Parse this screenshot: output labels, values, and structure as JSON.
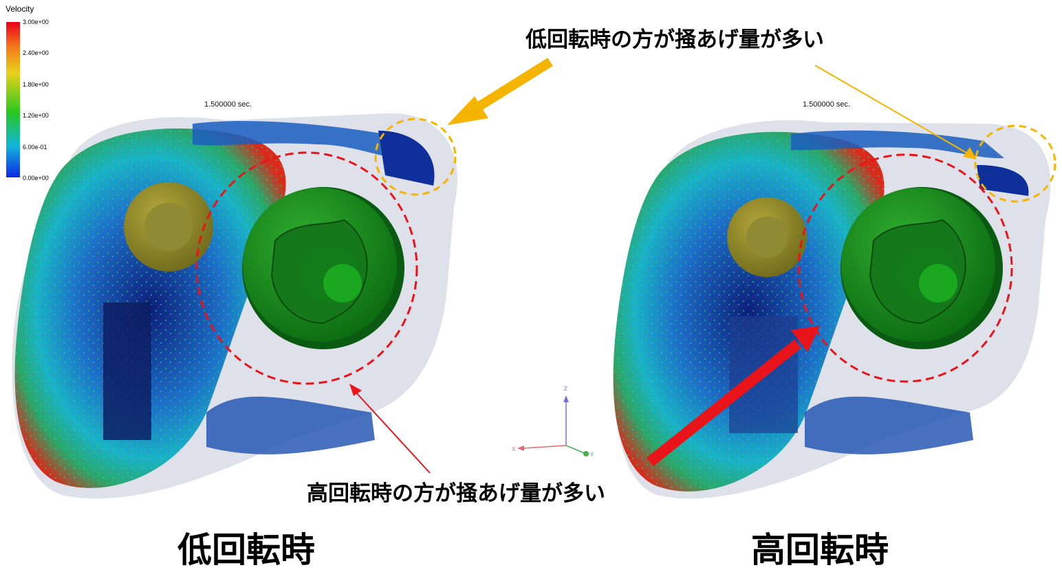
{
  "legend": {
    "title": "Velocity",
    "ticks": [
      "3.00e+00",
      "2.40e+00",
      "1.80e+00",
      "1.20e+00",
      "6.00e-01",
      "0.00e+00"
    ],
    "colors": [
      "#e8001a",
      "#f4781a",
      "#e8d21a",
      "#28c81e",
      "#10b4dc",
      "#1028e6"
    ]
  },
  "left_sim": {
    "time": "1.500000 sec."
  },
  "right_sim": {
    "time": "1.500000 sec."
  },
  "annotations": {
    "top": "低回転時の方が掻あげ量が多い",
    "bottom": "高回転時の方が掻あげ量が多い"
  },
  "captions": {
    "left": "低回転時",
    "right": "高回転時"
  },
  "axes_triad": {
    "z": "Z",
    "x": "X",
    "y": "Y"
  },
  "accent": {
    "orange": "#f5b400",
    "red": "#e8141a",
    "gear": "#138a18"
  }
}
